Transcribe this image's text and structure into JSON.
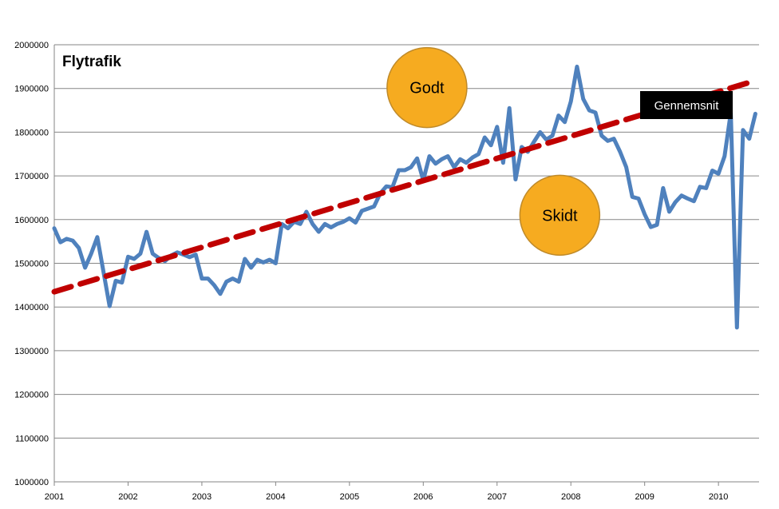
{
  "chart_data": {
    "type": "line",
    "title": "Flytrafik",
    "xlabel": "",
    "ylabel": "",
    "ylim": [
      1000000,
      2000000
    ],
    "xlim": [
      2001.0,
      2010.55
    ],
    "grid": "horizontal",
    "y_ticks": [
      1000000,
      1100000,
      1200000,
      1300000,
      1400000,
      1500000,
      1600000,
      1700000,
      1800000,
      1900000,
      2000000
    ],
    "x_tick_labels": [
      "2001",
      "2002",
      "2003",
      "2004",
      "2005",
      "2006",
      "2007",
      "2008",
      "2009",
      "2010"
    ],
    "series": [
      {
        "color": "#4f81bd",
        "style": "solid",
        "x": [
          2001.0,
          2001.083,
          2001.167,
          2001.25,
          2001.333,
          2001.417,
          2001.5,
          2001.583,
          2001.667,
          2001.75,
          2001.833,
          2001.917,
          2002.0,
          2002.083,
          2002.167,
          2002.25,
          2002.333,
          2002.417,
          2002.5,
          2002.583,
          2002.667,
          2002.75,
          2002.833,
          2002.917,
          2003.0,
          2003.083,
          2003.167,
          2003.25,
          2003.333,
          2003.417,
          2003.5,
          2003.583,
          2003.667,
          2003.75,
          2003.833,
          2003.917,
          2004.0,
          2004.083,
          2004.167,
          2004.25,
          2004.333,
          2004.417,
          2004.5,
          2004.583,
          2004.667,
          2004.75,
          2004.833,
          2004.917,
          2005.0,
          2005.083,
          2005.167,
          2005.25,
          2005.333,
          2005.417,
          2005.5,
          2005.583,
          2005.667,
          2005.75,
          2005.833,
          2005.917,
          2006.0,
          2006.083,
          2006.167,
          2006.25,
          2006.333,
          2006.417,
          2006.5,
          2006.583,
          2006.667,
          2006.75,
          2006.833,
          2006.917,
          2007.0,
          2007.083,
          2007.167,
          2007.25,
          2007.333,
          2007.417,
          2007.5,
          2007.583,
          2007.667,
          2007.75,
          2007.833,
          2007.917,
          2008.0,
          2008.083,
          2008.167,
          2008.25,
          2008.333,
          2008.417,
          2008.5,
          2008.583,
          2008.667,
          2008.75,
          2008.833,
          2008.917,
          2009.0,
          2009.083,
          2009.167,
          2009.25,
          2009.333,
          2009.417,
          2009.5,
          2009.583,
          2009.667,
          2009.75,
          2009.833,
          2009.917,
          2010.0,
          2010.083,
          2010.167,
          2010.25,
          2010.333,
          2010.417,
          2010.5
        ],
        "values": [
          1580000,
          1548000,
          1556000,
          1552000,
          1535000,
          1490000,
          1522000,
          1560000,
          1480000,
          1402000,
          1460000,
          1456000,
          1515000,
          1510000,
          1522000,
          1572000,
          1522000,
          1512000,
          1505000,
          1518000,
          1525000,
          1520000,
          1514000,
          1520000,
          1465000,
          1465000,
          1450000,
          1430000,
          1458000,
          1465000,
          1458000,
          1510000,
          1490000,
          1508000,
          1502000,
          1508000,
          1500000,
          1590000,
          1580000,
          1595000,
          1590000,
          1618000,
          1590000,
          1572000,
          1590000,
          1582000,
          1590000,
          1595000,
          1603000,
          1593000,
          1620000,
          1625000,
          1630000,
          1660000,
          1676000,
          1674000,
          1713000,
          1713000,
          1720000,
          1740000,
          1690000,
          1745000,
          1728000,
          1738000,
          1745000,
          1720000,
          1738000,
          1730000,
          1742000,
          1750000,
          1788000,
          1770000,
          1812000,
          1730000,
          1855000,
          1692000,
          1766000,
          1755000,
          1778000,
          1800000,
          1783000,
          1792000,
          1838000,
          1823000,
          1870000,
          1950000,
          1876000,
          1850000,
          1845000,
          1792000,
          1780000,
          1785000,
          1755000,
          1720000,
          1652000,
          1648000,
          1612000,
          1583000,
          1588000,
          1672000,
          1618000,
          1640000,
          1655000,
          1648000,
          1642000,
          1675000,
          1672000,
          1712000,
          1705000,
          1745000,
          1845000,
          1353000,
          1805000,
          1785000,
          1842000
        ]
      },
      {
        "name": "Gennemsnit",
        "color": "#c00000",
        "style": "dashed",
        "x": [
          2001.0,
          2010.5
        ],
        "values": [
          1435000,
          1918000
        ]
      }
    ],
    "annotations": [
      {
        "text": "Godt",
        "x": 2006.05,
        "y": 1902000
      },
      {
        "text": "Skidt",
        "x": 2007.85,
        "y": 1610000
      }
    ]
  },
  "colors": {
    "bubble_fill": "#f6ab20",
    "bubble_stroke": "#bf8a2a",
    "legend_bg": "#000000",
    "legend_text": "#ffffff",
    "grid": "#868686"
  }
}
